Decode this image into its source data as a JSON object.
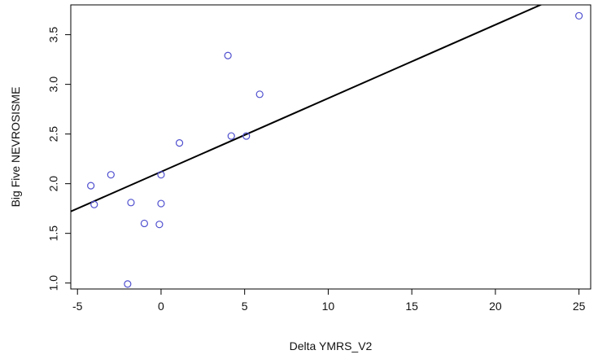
{
  "chart_data": {
    "type": "scatter",
    "title": "",
    "xlabel": "Delta YMRS_V2",
    "ylabel": "Big Five NEVROSISME",
    "xlim": [
      -5.4,
      25.7
    ],
    "ylim": [
      0.94,
      3.8
    ],
    "x_ticks": [
      -5,
      0,
      5,
      10,
      15,
      20,
      25
    ],
    "x_tick_labels": [
      "-5",
      "0",
      "5",
      "10",
      "15",
      "20",
      "25"
    ],
    "y_ticks": [
      1.0,
      1.5,
      2.0,
      2.5,
      3.0,
      3.5
    ],
    "y_tick_labels": [
      "1.0",
      "1.5",
      "2.0",
      "2.5",
      "3.0",
      "3.5"
    ],
    "grid": false,
    "legend": "none",
    "points": [
      {
        "x": -4.2,
        "y": 1.98
      },
      {
        "x": -4.0,
        "y": 1.79
      },
      {
        "x": -3.0,
        "y": 2.09
      },
      {
        "x": -2.0,
        "y": 0.99
      },
      {
        "x": -1.8,
        "y": 1.81
      },
      {
        "x": -1.0,
        "y": 1.6
      },
      {
        "x": -0.1,
        "y": 1.59
      },
      {
        "x": 0.0,
        "y": 2.09
      },
      {
        "x": 0.0,
        "y": 1.8
      },
      {
        "x": 1.1,
        "y": 2.41
      },
      {
        "x": 4.0,
        "y": 3.29
      },
      {
        "x": 4.2,
        "y": 2.48
      },
      {
        "x": 5.1,
        "y": 2.48
      },
      {
        "x": 5.9,
        "y": 2.9
      },
      {
        "x": 25.0,
        "y": 3.69
      }
    ],
    "fit_line": {
      "intercept": 2.12,
      "slope": 0.074
    },
    "point_color": "#4f4fcf",
    "line_color": "#000000"
  }
}
